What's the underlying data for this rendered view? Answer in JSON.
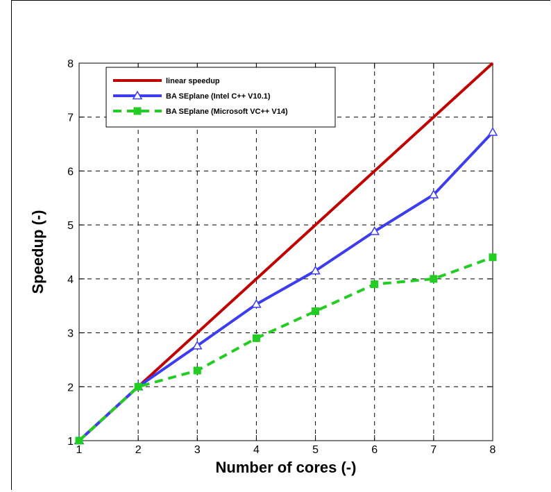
{
  "chart_data": {
    "type": "line",
    "xlabel": "Number of cores (-)",
    "ylabel": "Speedup (-)",
    "xlim": [
      1,
      8
    ],
    "ylim": [
      1,
      8
    ],
    "xticks": [
      "1",
      "2",
      "3",
      "4",
      "5",
      "6",
      "7",
      "8"
    ],
    "yticks": [
      "1",
      "2",
      "3",
      "4",
      "5",
      "6",
      "7",
      "8"
    ],
    "grid": true,
    "legend_position": "top-left",
    "series": [
      {
        "name": "linear speedup",
        "color": "#c00000",
        "marker": "none",
        "dash": "solid",
        "x": [
          1,
          2,
          3,
          4,
          5,
          6,
          7,
          8
        ],
        "y": [
          1,
          2,
          3,
          4,
          5,
          6,
          7,
          8
        ]
      },
      {
        "name": "BA SEplane (Intel C++ V10.1)",
        "color": "#3c3cf0",
        "marker": "triangle",
        "dash": "solid",
        "x": [
          1,
          2,
          3,
          4,
          5,
          6,
          7,
          8
        ],
        "y": [
          1,
          2,
          2.76,
          3.53,
          4.15,
          4.88,
          5.56,
          6.72
        ]
      },
      {
        "name": "BA SEplane (Microsoft VC++ V14)",
        "color": "#22cc22",
        "marker": "square",
        "dash": "dashed",
        "x": [
          1,
          2,
          3,
          4,
          5,
          6,
          7,
          8
        ],
        "y": [
          1,
          2,
          2.3,
          2.9,
          3.4,
          3.9,
          4.0,
          4.4
        ]
      }
    ]
  }
}
